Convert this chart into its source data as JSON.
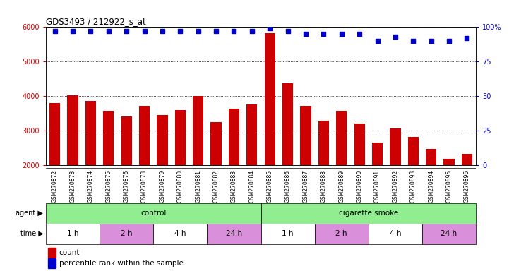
{
  "title": "GDS3493 / 212922_s_at",
  "samples": [
    "GSM270872",
    "GSM270873",
    "GSM270874",
    "GSM270875",
    "GSM270876",
    "GSM270878",
    "GSM270879",
    "GSM270880",
    "GSM270881",
    "GSM270882",
    "GSM270883",
    "GSM270884",
    "GSM270885",
    "GSM270886",
    "GSM270887",
    "GSM270888",
    "GSM270889",
    "GSM270890",
    "GSM270891",
    "GSM270892",
    "GSM270893",
    "GSM270894",
    "GSM270895",
    "GSM270896"
  ],
  "counts": [
    3800,
    4020,
    3870,
    3580,
    3420,
    3720,
    3450,
    3590,
    4010,
    3250,
    3640,
    3760,
    5820,
    4380,
    3720,
    3300,
    3570,
    3200,
    2650,
    3070,
    2820,
    2480,
    2180,
    2330
  ],
  "percentile_ranks": [
    97,
    97,
    97,
    97,
    97,
    97,
    97,
    97,
    97,
    97,
    97,
    97,
    99,
    97,
    95,
    95,
    95,
    95,
    90,
    93,
    90,
    90,
    90,
    92
  ],
  "bar_color": "#cc0000",
  "dot_color": "#0000cc",
  "ylim_left": [
    2000,
    6000
  ],
  "ylim_right": [
    0,
    100
  ],
  "yticks_left": [
    2000,
    3000,
    4000,
    5000,
    6000
  ],
  "yticks_right": [
    0,
    25,
    50,
    75,
    100
  ],
  "agent_groups": [
    {
      "label": "control",
      "start": 0,
      "end": 12,
      "color": "#90ee90"
    },
    {
      "label": "cigarette smoke",
      "start": 12,
      "end": 24,
      "color": "#90ee90"
    }
  ],
  "time_groups": [
    {
      "label": "1 h",
      "start": 0,
      "end": 3,
      "color": "#ffffff"
    },
    {
      "label": "2 h",
      "start": 3,
      "end": 6,
      "color": "#da8fda"
    },
    {
      "label": "4 h",
      "start": 6,
      "end": 9,
      "color": "#ffffff"
    },
    {
      "label": "24 h",
      "start": 9,
      "end": 12,
      "color": "#da8fda"
    },
    {
      "label": "1 h",
      "start": 12,
      "end": 15,
      "color": "#ffffff"
    },
    {
      "label": "2 h",
      "start": 15,
      "end": 18,
      "color": "#da8fda"
    },
    {
      "label": "4 h",
      "start": 18,
      "end": 21,
      "color": "#ffffff"
    },
    {
      "label": "24 h",
      "start": 21,
      "end": 24,
      "color": "#da8fda"
    }
  ]
}
